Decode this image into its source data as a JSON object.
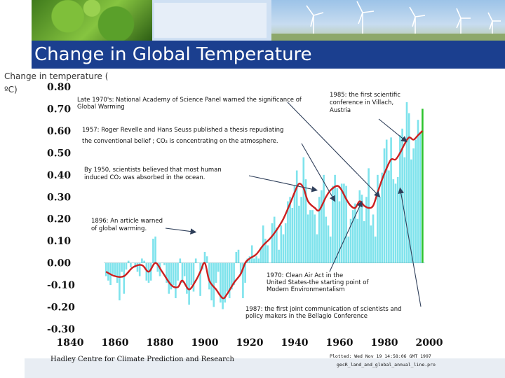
{
  "slide": {
    "title": "Change in Global Temperature",
    "ylabel_line1": "Change in temperature (",
    "ylabel_line2": "ºC)"
  },
  "colors": {
    "title_bar": "#1b3f8f",
    "bars": "#7fe3ec",
    "last_bar": "#2fc42f",
    "smooth_line": "#cc2020",
    "arrows": "#2f3f5a"
  },
  "chart_data": {
    "type": "bar",
    "title": "",
    "xlabel": "",
    "ylabel": "Change in temperature (ºC)",
    "xlim": [
      1840,
      2000
    ],
    "ylim": [
      -0.3,
      0.8
    ],
    "x_ticks": [
      "1840",
      "1860",
      "1880",
      "1900",
      "1920",
      "1940",
      "1960",
      "1980",
      "2000"
    ],
    "y_ticks": [
      "0.80",
      "0.70",
      "0.60",
      "0.50",
      "0.40",
      "0.30",
      "0.20",
      "0.10",
      "0.00",
      "-0.10",
      "-0.20",
      "-0.30"
    ],
    "years": [
      1856,
      1857,
      1858,
      1859,
      1860,
      1861,
      1862,
      1863,
      1864,
      1865,
      1866,
      1867,
      1868,
      1869,
      1870,
      1871,
      1872,
      1873,
      1874,
      1875,
      1876,
      1877,
      1878,
      1879,
      1880,
      1881,
      1882,
      1883,
      1884,
      1885,
      1886,
      1887,
      1888,
      1889,
      1890,
      1891,
      1892,
      1893,
      1894,
      1895,
      1896,
      1897,
      1898,
      1899,
      1900,
      1901,
      1902,
      1903,
      1904,
      1905,
      1906,
      1907,
      1908,
      1909,
      1910,
      1911,
      1912,
      1913,
      1914,
      1915,
      1916,
      1917,
      1918,
      1919,
      1920,
      1921,
      1922,
      1923,
      1924,
      1925,
      1926,
      1927,
      1928,
      1929,
      1930,
      1931,
      1932,
      1933,
      1934,
      1935,
      1936,
      1937,
      1938,
      1939,
      1940,
      1941,
      1942,
      1943,
      1944,
      1945,
      1946,
      1947,
      1948,
      1949,
      1950,
      1951,
      1952,
      1953,
      1954,
      1955,
      1956,
      1957,
      1958,
      1959,
      1960,
      1961,
      1962,
      1963,
      1964,
      1965,
      1966,
      1967,
      1968,
      1969,
      1970,
      1971,
      1972,
      1973,
      1974,
      1975,
      1976,
      1977,
      1978,
      1979,
      1980,
      1981,
      1982,
      1983,
      1984,
      1985,
      1986,
      1987,
      1988,
      1989,
      1990,
      1991,
      1992,
      1993,
      1994,
      1995,
      1996,
      1997
    ],
    "values": [
      -0.06,
      -0.08,
      -0.1,
      -0.05,
      -0.06,
      -0.09,
      -0.17,
      -0.04,
      -0.14,
      -0.03,
      0.01,
      -0.02,
      0.0,
      -0.02,
      -0.04,
      -0.06,
      0.02,
      0.01,
      -0.08,
      -0.09,
      -0.08,
      0.11,
      0.12,
      -0.04,
      -0.06,
      0.0,
      -0.01,
      -0.09,
      -0.14,
      -0.12,
      -0.1,
      -0.16,
      -0.08,
      0.02,
      -0.09,
      -0.06,
      -0.14,
      -0.19,
      -0.1,
      -0.13,
      0.02,
      0.0,
      -0.15,
      -0.03,
      0.05,
      0.03,
      -0.12,
      -0.17,
      -0.2,
      -0.09,
      -0.04,
      -0.18,
      -0.21,
      -0.18,
      -0.13,
      -0.16,
      -0.12,
      -0.1,
      0.05,
      0.06,
      -0.05,
      -0.16,
      -0.09,
      0.02,
      0.03,
      0.08,
      0.02,
      0.03,
      0.02,
      0.07,
      0.17,
      0.11,
      0.08,
      0.0,
      0.18,
      0.21,
      0.16,
      0.06,
      0.17,
      0.13,
      0.18,
      0.28,
      0.3,
      0.25,
      0.35,
      0.42,
      0.26,
      0.3,
      0.48,
      0.38,
      0.22,
      0.24,
      0.24,
      0.22,
      0.13,
      0.3,
      0.33,
      0.4,
      0.21,
      0.17,
      0.12,
      0.35,
      0.4,
      0.34,
      0.28,
      0.36,
      0.36,
      0.35,
      0.12,
      0.2,
      0.24,
      0.27,
      0.2,
      0.33,
      0.31,
      0.19,
      0.3,
      0.43,
      0.17,
      0.22,
      0.12,
      0.4,
      0.3,
      0.41,
      0.52,
      0.56,
      0.42,
      0.57,
      0.38,
      0.36,
      0.39,
      0.58,
      0.61,
      0.48,
      0.73,
      0.68,
      0.47,
      0.52,
      0.56,
      0.65,
      0.59,
      0.7
    ],
    "smoothed": [
      [
        1856,
        -0.04
      ],
      [
        1860,
        -0.06
      ],
      [
        1864,
        -0.06
      ],
      [
        1868,
        -0.02
      ],
      [
        1872,
        -0.01
      ],
      [
        1875,
        -0.04
      ],
      [
        1878,
        0.0
      ],
      [
        1881,
        -0.04
      ],
      [
        1885,
        -0.1
      ],
      [
        1888,
        -0.11
      ],
      [
        1890,
        -0.08
      ],
      [
        1893,
        -0.12
      ],
      [
        1896,
        -0.08
      ],
      [
        1898,
        -0.04
      ],
      [
        1900,
        0.0
      ],
      [
        1902,
        -0.08
      ],
      [
        1905,
        -0.12
      ],
      [
        1908,
        -0.16
      ],
      [
        1910,
        -0.14
      ],
      [
        1913,
        -0.09
      ],
      [
        1916,
        -0.05
      ],
      [
        1918,
        0.0
      ],
      [
        1920,
        0.02
      ],
      [
        1923,
        0.04
      ],
      [
        1926,
        0.08
      ],
      [
        1929,
        0.11
      ],
      [
        1932,
        0.15
      ],
      [
        1935,
        0.2
      ],
      [
        1938,
        0.27
      ],
      [
        1940,
        0.32
      ],
      [
        1942,
        0.36
      ],
      [
        1944,
        0.34
      ],
      [
        1946,
        0.28
      ],
      [
        1949,
        0.25
      ],
      [
        1951,
        0.24
      ],
      [
        1954,
        0.3
      ],
      [
        1956,
        0.33
      ],
      [
        1959,
        0.35
      ],
      [
        1961,
        0.33
      ],
      [
        1963,
        0.29
      ],
      [
        1965,
        0.26
      ],
      [
        1967,
        0.25
      ],
      [
        1969,
        0.28
      ],
      [
        1971,
        0.26
      ],
      [
        1973,
        0.25
      ],
      [
        1975,
        0.26
      ],
      [
        1977,
        0.32
      ],
      [
        1979,
        0.38
      ],
      [
        1981,
        0.43
      ],
      [
        1983,
        0.47
      ],
      [
        1985,
        0.47
      ],
      [
        1987,
        0.5
      ],
      [
        1989,
        0.54
      ],
      [
        1991,
        0.57
      ],
      [
        1993,
        0.56
      ],
      [
        1995,
        0.58
      ],
      [
        1997,
        0.6
      ]
    ],
    "annotations": [
      {
        "lines": [
          "Late 1970's: National Academy of Science Panel warned the significance of",
          "Global Warming"
        ]
      },
      {
        "lines": [
          "1985: the first scientific",
          "conference in Villach,",
          "Austria"
        ]
      },
      {
        "lines": [
          "1957: Roger Revelle and Hans Seuss published a thesis repudiating",
          "the conventional belief ; CO₂ is concentrating on the atmosphere."
        ]
      },
      {
        "lines": [
          "By 1950, scientists believed that most human",
          "induced CO₂ was absorbed in the ocean."
        ]
      },
      {
        "lines": [
          "1896: An article warned",
          "of global warming."
        ]
      },
      {
        "lines": [
          "1970: Clean Air Act in the",
          "United States-the starting point of",
          "Modern Environmentalism"
        ]
      },
      {
        "lines": [
          "1987: the first joint communication of scientists and",
          "policy makers in the Bellagio Conference"
        ]
      }
    ],
    "footer_left": "Hadley Centre for Climate Prediction and Research",
    "footer_right_line1": "Plotted: Wed Nov 19 14:58:06 GMT 1997",
    "footer_right_line2": "gecR_land_and_global_annual_line.pro"
  }
}
